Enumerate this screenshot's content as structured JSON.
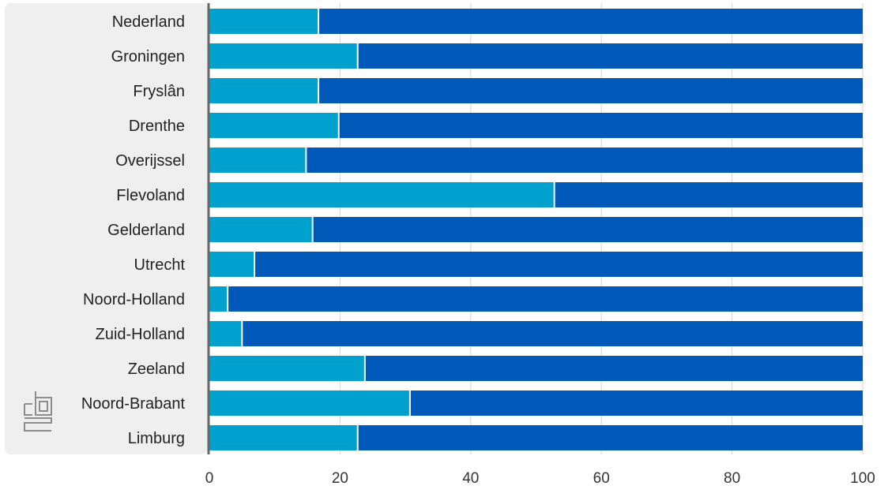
{
  "chart_data": {
    "type": "bar",
    "orientation": "horizontal",
    "stacked": true,
    "categories": [
      "Nederland",
      "Groningen",
      "Fryslân",
      "Drenthe",
      "Overijssel",
      "Flevoland",
      "Gelderland",
      "Utrecht",
      "Noord-Holland",
      "Zuid-Holland",
      "Zeeland",
      "Noord-Brabant",
      "Limburg"
    ],
    "series": [
      {
        "color": "#00a1cd",
        "values": [
          16.7,
          22.7,
          16.7,
          19.8,
          14.8,
          52.8,
          15.8,
          6.9,
          2.8,
          5.0,
          23.8,
          30.7,
          22.7
        ]
      },
      {
        "color": "#0058b8",
        "values": [
          83.3,
          77.3,
          83.3,
          80.2,
          85.2,
          47.2,
          84.2,
          93.1,
          97.2,
          95.0,
          76.2,
          69.3,
          77.3
        ]
      }
    ],
    "xlim": [
      0,
      100
    ],
    "xticks": [
      0,
      20,
      40,
      60,
      80,
      100
    ],
    "grid": true,
    "legend": "none"
  },
  "branding": {
    "logo_icon": "cbs-logo-icon"
  }
}
